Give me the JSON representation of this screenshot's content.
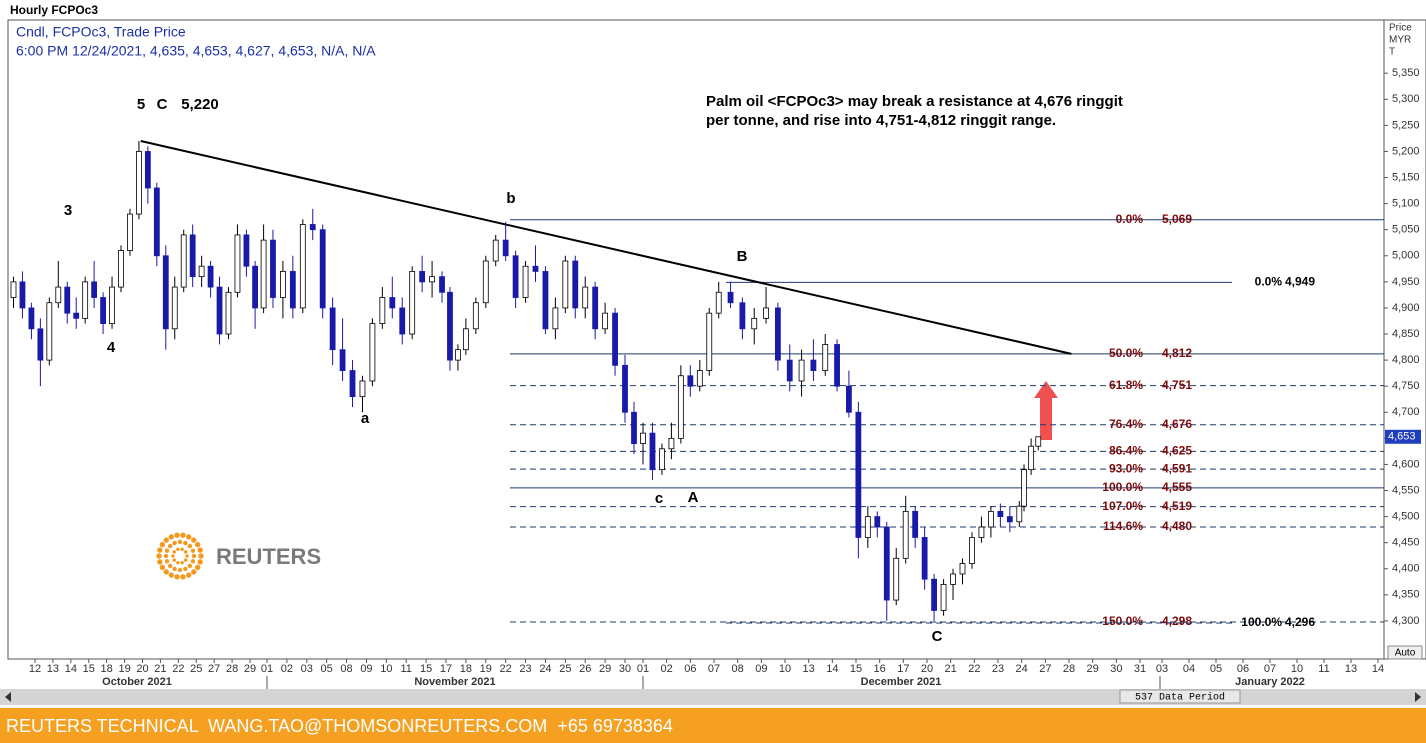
{
  "chart_data": {
    "type": "candlestick",
    "title": "Hourly FCPOc3",
    "legend_lines": [
      "Cndl, FCPOc3, Trade Price",
      "6:00 PM 12/24/2021, 4,635, 4,653, 4,627, 4,653, N/A, N/A"
    ],
    "categories": [
      "12",
      "13",
      "14",
      "15",
      "18",
      "19",
      "20",
      "21",
      "22",
      "25",
      "27",
      "28",
      "29",
      "01",
      "02",
      "03",
      "05",
      "08",
      "09",
      "10",
      "11",
      "15",
      "17",
      "18",
      "19",
      "22",
      "23",
      "24",
      "25",
      "26",
      "29",
      "30",
      "01",
      "02",
      "06",
      "07",
      "08",
      "09",
      "10",
      "13",
      "14",
      "15",
      "16",
      "17",
      "20",
      "21",
      "22",
      "23",
      "24",
      "27",
      "28",
      "29",
      "30",
      "31",
      "03",
      "04",
      "05",
      "06",
      "07",
      "10",
      "11",
      "13",
      "14"
    ],
    "months": [
      "October 2021",
      "November 2021",
      "December 2021",
      "January 2022"
    ],
    "ylim": [
      4227,
      5452
    ],
    "yticks": [
      {
        "value": 4300,
        "label": "4,300"
      },
      {
        "value": 4350,
        "label": "4,350"
      },
      {
        "value": 4400,
        "label": "4,400"
      },
      {
        "value": 4450,
        "label": "4,450"
      },
      {
        "value": 4500,
        "label": "4,500"
      },
      {
        "value": 4550,
        "label": "4,550"
      },
      {
        "value": 4600,
        "label": "4,600"
      },
      {
        "value": 4650,
        "label": "4,650"
      },
      {
        "value": 4700,
        "label": "4,700"
      },
      {
        "value": 4750,
        "label": "4,750"
      },
      {
        "value": 4800,
        "label": "4,800"
      },
      {
        "value": 4850,
        "label": "4,850"
      },
      {
        "value": 4900,
        "label": "4,900"
      },
      {
        "value": 4950,
        "label": "4,950"
      },
      {
        "value": 5000,
        "label": "5,000"
      },
      {
        "value": 5050,
        "label": "5,050"
      },
      {
        "value": 5100,
        "label": "5,100"
      },
      {
        "value": 5150,
        "label": "5,150"
      },
      {
        "value": 5200,
        "label": "5,200"
      },
      {
        "value": 5250,
        "label": "5,250"
      },
      {
        "value": 5300,
        "label": "5,300"
      },
      {
        "value": 5350,
        "label": "5,350"
      }
    ],
    "y_axis_title": [
      "Price",
      "MYR",
      "T"
    ],
    "last_price": {
      "value": 4653,
      "label": "4,653"
    },
    "up_color": "#ffffff",
    "down_color": "#1a1aa8",
    "candles": [
      {
        "x": -1.2,
        "open": 4920,
        "high": 4960,
        "low": 4900,
        "close": 4950
      },
      {
        "x": -0.7,
        "open": 4950,
        "high": 4970,
        "low": 4880,
        "close": 4900
      },
      {
        "x": -0.2,
        "open": 4900,
        "high": 4910,
        "low": 4840,
        "close": 4860
      },
      {
        "x": 0.3,
        "open": 4860,
        "high": 4880,
        "low": 4750,
        "close": 4800
      },
      {
        "x": 0.8,
        "open": 4800,
        "high": 4920,
        "low": 4790,
        "close": 4910
      },
      {
        "x": 1.3,
        "open": 4910,
        "high": 4990,
        "low": 4900,
        "close": 4940
      },
      {
        "x": 1.8,
        "open": 4940,
        "high": 4950,
        "low": 4870,
        "close": 4890
      },
      {
        "x": 2.3,
        "open": 4890,
        "high": 4920,
        "low": 4860,
        "close": 4880
      },
      {
        "x": 2.8,
        "open": 4880,
        "high": 4960,
        "low": 4870,
        "close": 4950
      },
      {
        "x": 3.3,
        "open": 4950,
        "high": 4990,
        "low": 4900,
        "close": 4920
      },
      {
        "x": 3.8,
        "open": 4920,
        "high": 4930,
        "low": 4850,
        "close": 4870
      },
      {
        "x": 4.3,
        "open": 4870,
        "high": 4960,
        "low": 4860,
        "close": 4940
      },
      {
        "x": 4.8,
        "open": 4940,
        "high": 5020,
        "low": 4930,
        "close": 5010
      },
      {
        "x": 5.3,
        "open": 5010,
        "high": 5090,
        "low": 5000,
        "close": 5080
      },
      {
        "x": 5.8,
        "open": 5080,
        "high": 5220,
        "low": 5070,
        "close": 5200
      },
      {
        "x": 6.3,
        "open": 5200,
        "high": 5210,
        "low": 5100,
        "close": 5130
      },
      {
        "x": 6.8,
        "open": 5130,
        "high": 5140,
        "low": 4980,
        "close": 5000
      },
      {
        "x": 7.3,
        "open": 5000,
        "high": 5020,
        "low": 4820,
        "close": 4860
      },
      {
        "x": 7.8,
        "open": 4860,
        "high": 4960,
        "low": 4840,
        "close": 4940
      },
      {
        "x": 8.3,
        "open": 4940,
        "high": 5050,
        "low": 4930,
        "close": 5040
      },
      {
        "x": 8.8,
        "open": 5040,
        "high": 5060,
        "low": 4940,
        "close": 4960
      },
      {
        "x": 9.3,
        "open": 4960,
        "high": 5000,
        "low": 4940,
        "close": 4980
      },
      {
        "x": 9.8,
        "open": 4980,
        "high": 4990,
        "low": 4920,
        "close": 4940
      },
      {
        "x": 10.3,
        "open": 4940,
        "high": 4960,
        "low": 4830,
        "close": 4850
      },
      {
        "x": 10.8,
        "open": 4850,
        "high": 4940,
        "low": 4840,
        "close": 4930
      },
      {
        "x": 11.3,
        "open": 4930,
        "high": 5060,
        "low": 4920,
        "close": 5040
      },
      {
        "x": 11.8,
        "open": 5040,
        "high": 5050,
        "low": 4960,
        "close": 4980
      },
      {
        "x": 12.3,
        "open": 4980,
        "high": 4990,
        "low": 4860,
        "close": 4900
      },
      {
        "x": 12.8,
        "open": 4900,
        "high": 5060,
        "low": 4890,
        "close": 5030
      },
      {
        "x": 13.3,
        "open": 5030,
        "high": 5050,
        "low": 4900,
        "close": 4920
      },
      {
        "x": 13.8,
        "open": 4920,
        "high": 4990,
        "low": 4880,
        "close": 4970
      },
      {
        "x": 14.3,
        "open": 4970,
        "high": 5000,
        "low": 4880,
        "close": 4900
      },
      {
        "x": 14.8,
        "open": 4900,
        "high": 5070,
        "low": 4890,
        "close": 5060
      },
      {
        "x": 15.3,
        "open": 5060,
        "high": 5090,
        "low": 5030,
        "close": 5050
      },
      {
        "x": 15.8,
        "open": 5050,
        "high": 5060,
        "low": 4880,
        "close": 4900
      },
      {
        "x": 16.3,
        "open": 4900,
        "high": 4920,
        "low": 4790,
        "close": 4820
      },
      {
        "x": 16.8,
        "open": 4820,
        "high": 4880,
        "low": 4760,
        "close": 4780
      },
      {
        "x": 17.3,
        "open": 4780,
        "high": 4800,
        "low": 4710,
        "close": 4730
      },
      {
        "x": 17.8,
        "open": 4730,
        "high": 4770,
        "low": 4700,
        "close": 4760
      },
      {
        "x": 18.3,
        "open": 4760,
        "high": 4880,
        "low": 4750,
        "close": 4870
      },
      {
        "x": 18.8,
        "open": 4870,
        "high": 4940,
        "low": 4860,
        "close": 4920
      },
      {
        "x": 19.3,
        "open": 4920,
        "high": 4960,
        "low": 4880,
        "close": 4900
      },
      {
        "x": 19.8,
        "open": 4900,
        "high": 4920,
        "low": 4830,
        "close": 4850
      },
      {
        "x": 20.3,
        "open": 4850,
        "high": 4980,
        "low": 4840,
        "close": 4970
      },
      {
        "x": 20.8,
        "open": 4970,
        "high": 5000,
        "low": 4930,
        "close": 4950
      },
      {
        "x": 21.3,
        "open": 4950,
        "high": 4990,
        "low": 4920,
        "close": 4960
      },
      {
        "x": 21.8,
        "open": 4960,
        "high": 4970,
        "low": 4910,
        "close": 4930
      },
      {
        "x": 22.2,
        "open": 4930,
        "high": 4940,
        "low": 4780,
        "close": 4800
      },
      {
        "x": 22.6,
        "open": 4800,
        "high": 4830,
        "low": 4780,
        "close": 4820
      },
      {
        "x": 23.0,
        "open": 4820,
        "high": 4880,
        "low": 4810,
        "close": 4860
      },
      {
        "x": 23.5,
        "open": 4860,
        "high": 4920,
        "low": 4850,
        "close": 4910
      },
      {
        "x": 24.0,
        "open": 4910,
        "high": 5000,
        "low": 4900,
        "close": 4990
      },
      {
        "x": 24.5,
        "open": 4990,
        "high": 5040,
        "low": 4980,
        "close": 5030
      },
      {
        "x": 25.0,
        "open": 5030,
        "high": 5065,
        "low": 4990,
        "close": 5000
      },
      {
        "x": 25.5,
        "open": 5000,
        "high": 5010,
        "low": 4900,
        "close": 4920
      },
      {
        "x": 26.0,
        "open": 4920,
        "high": 4990,
        "low": 4910,
        "close": 4980
      },
      {
        "x": 26.5,
        "open": 4980,
        "high": 5020,
        "low": 4950,
        "close": 4970
      },
      {
        "x": 27.0,
        "open": 4970,
        "high": 4980,
        "low": 4850,
        "close": 4860
      },
      {
        "x": 27.5,
        "open": 4860,
        "high": 4920,
        "low": 4840,
        "close": 4900
      },
      {
        "x": 28.0,
        "open": 4900,
        "high": 5000,
        "low": 4890,
        "close": 4990
      },
      {
        "x": 28.5,
        "open": 4990,
        "high": 5000,
        "low": 4880,
        "close": 4900
      },
      {
        "x": 29.0,
        "open": 4900,
        "high": 4960,
        "low": 4880,
        "close": 4940
      },
      {
        "x": 29.5,
        "open": 4940,
        "high": 4950,
        "low": 4840,
        "close": 4860
      },
      {
        "x": 30.0,
        "open": 4860,
        "high": 4910,
        "low": 4850,
        "close": 4890
      },
      {
        "x": 30.5,
        "open": 4890,
        "high": 4900,
        "low": 4770,
        "close": 4790
      },
      {
        "x": 31.0,
        "open": 4790,
        "high": 4810,
        "low": 4680,
        "close": 4700
      },
      {
        "x": 31.5,
        "open": 4700,
        "high": 4720,
        "low": 4620,
        "close": 4640
      },
      {
        "x": 32.0,
        "open": 4640,
        "high": 4680,
        "low": 4600,
        "close": 4660
      },
      {
        "x": 32.4,
        "open": 4660,
        "high": 4680,
        "low": 4570,
        "close": 4590
      },
      {
        "x": 32.8,
        "open": 4590,
        "high": 4640,
        "low": 4580,
        "close": 4630
      },
      {
        "x": 33.2,
        "open": 4630,
        "high": 4680,
        "low": 4610,
        "close": 4650
      },
      {
        "x": 33.6,
        "open": 4650,
        "high": 4790,
        "low": 4640,
        "close": 4770
      },
      {
        "x": 34.0,
        "open": 4770,
        "high": 4790,
        "low": 4730,
        "close": 4750
      },
      {
        "x": 34.4,
        "open": 4750,
        "high": 4800,
        "low": 4740,
        "close": 4780
      },
      {
        "x": 34.8,
        "open": 4780,
        "high": 4900,
        "low": 4770,
        "close": 4890
      },
      {
        "x": 35.2,
        "open": 4890,
        "high": 4950,
        "low": 4880,
        "close": 4930
      },
      {
        "x": 35.7,
        "open": 4930,
        "high": 4950,
        "low": 4900,
        "close": 4910
      },
      {
        "x": 36.2,
        "open": 4910,
        "high": 4920,
        "low": 4840,
        "close": 4860
      },
      {
        "x": 36.7,
        "open": 4860,
        "high": 4900,
        "low": 4830,
        "close": 4880
      },
      {
        "x": 37.2,
        "open": 4880,
        "high": 4940,
        "low": 4870,
        "close": 4900
      },
      {
        "x": 37.7,
        "open": 4900,
        "high": 4910,
        "low": 4780,
        "close": 4800
      },
      {
        "x": 38.2,
        "open": 4800,
        "high": 4830,
        "low": 4740,
        "close": 4760
      },
      {
        "x": 38.7,
        "open": 4760,
        "high": 4820,
        "low": 4730,
        "close": 4800
      },
      {
        "x": 39.2,
        "open": 4800,
        "high": 4840,
        "low": 4760,
        "close": 4780
      },
      {
        "x": 39.7,
        "open": 4780,
        "high": 4850,
        "low": 4770,
        "close": 4830
      },
      {
        "x": 40.2,
        "open": 4830,
        "high": 4840,
        "low": 4740,
        "close": 4750
      },
      {
        "x": 40.7,
        "open": 4750,
        "high": 4780,
        "low": 4690,
        "close": 4700
      },
      {
        "x": 41.1,
        "open": 4700,
        "high": 4720,
        "low": 4420,
        "close": 4460
      },
      {
        "x": 41.5,
        "open": 4460,
        "high": 4520,
        "low": 4440,
        "close": 4500
      },
      {
        "x": 41.9,
        "open": 4500,
        "high": 4510,
        "low": 4460,
        "close": 4480
      },
      {
        "x": 42.3,
        "open": 4480,
        "high": 4490,
        "low": 4300,
        "close": 4340
      },
      {
        "x": 42.7,
        "open": 4340,
        "high": 4440,
        "low": 4330,
        "close": 4420
      },
      {
        "x": 43.1,
        "open": 4420,
        "high": 4540,
        "low": 4410,
        "close": 4510
      },
      {
        "x": 43.5,
        "open": 4510,
        "high": 4520,
        "low": 4440,
        "close": 4460
      },
      {
        "x": 43.9,
        "open": 4460,
        "high": 4480,
        "low": 4360,
        "close": 4380
      },
      {
        "x": 44.3,
        "open": 4380,
        "high": 4390,
        "low": 4300,
        "close": 4320
      },
      {
        "x": 44.7,
        "open": 4320,
        "high": 4380,
        "low": 4310,
        "close": 4370
      },
      {
        "x": 45.1,
        "open": 4370,
        "high": 4400,
        "low": 4340,
        "close": 4390
      },
      {
        "x": 45.5,
        "open": 4390,
        "high": 4420,
        "low": 4370,
        "close": 4410
      },
      {
        "x": 45.9,
        "open": 4410,
        "high": 4470,
        "low": 4400,
        "close": 4460
      },
      {
        "x": 46.3,
        "open": 4460,
        "high": 4500,
        "low": 4450,
        "close": 4480
      },
      {
        "x": 46.7,
        "open": 4480,
        "high": 4520,
        "low": 4460,
        "close": 4510
      },
      {
        "x": 47.1,
        "open": 4510,
        "high": 4525,
        "low": 4480,
        "close": 4500
      },
      {
        "x": 47.5,
        "open": 4500,
        "high": 4520,
        "low": 4470,
        "close": 4490
      },
      {
        "x": 47.9,
        "open": 4490,
        "high": 4530,
        "low": 4480,
        "close": 4520
      },
      {
        "x": 48.1,
        "open": 4520,
        "high": 4600,
        "low": 4510,
        "close": 4590
      },
      {
        "x": 48.4,
        "open": 4590,
        "high": 4650,
        "low": 4580,
        "close": 4635
      },
      {
        "x": 48.7,
        "open": 4635,
        "high": 4653,
        "low": 4627,
        "close": 4653
      }
    ],
    "trendline": {
      "x": [
        5.9,
        50.1
      ],
      "y": [
        5220,
        4812
      ]
    },
    "annotations": [
      "5",
      "C",
      "5,220",
      "3",
      "4",
      "a",
      "b",
      "B",
      "c",
      "A",
      "C"
    ],
    "comment": [
      "Palm oil <FCPOc3> may break a resistance at 4,676 ringgit",
      "per tonne, and rise into 4,751-4,812 ringgit range."
    ],
    "fib_levels": [
      {
        "pct": {
          "value": 0,
          "label": "0.0%"
        },
        "price": {
          "value": 5069,
          "label": "5,069"
        },
        "dashed": false
      },
      {
        "pct": {
          "value": 50,
          "label": "50.0%"
        },
        "price": {
          "value": 4812,
          "label": "4,812"
        },
        "dashed": false
      },
      {
        "pct": {
          "value": 61.8,
          "label": "61.8%"
        },
        "price": {
          "value": 4751,
          "label": "4,751"
        },
        "dashed": true
      },
      {
        "pct": {
          "value": 76.4,
          "label": "76.4%"
        },
        "price": {
          "value": 4676,
          "label": "4,676"
        },
        "dashed": true
      },
      {
        "pct": {
          "value": 86.4,
          "label": "86.4%"
        },
        "price": {
          "value": 4625,
          "label": "4,625"
        },
        "dashed": true
      },
      {
        "pct": {
          "value": 93,
          "label": "93.0%"
        },
        "price": {
          "value": 4591,
          "label": "4,591"
        },
        "dashed": true
      },
      {
        "pct": {
          "value": 100,
          "label": "100.0%"
        },
        "price": {
          "value": 4555,
          "label": "4,555"
        },
        "dashed": false
      },
      {
        "pct": {
          "value": 107,
          "label": "107.0%"
        },
        "price": {
          "value": 4519,
          "label": "4,519"
        },
        "dashed": true
      },
      {
        "pct": {
          "value": 114.6,
          "label": "114.6%"
        },
        "price": {
          "value": 4480,
          "label": "4,480"
        },
        "dashed": true
      },
      {
        "pct": {
          "value": 150,
          "label": "150.0%"
        },
        "price": {
          "value": 4298,
          "label": "4,298"
        },
        "dashed": true
      }
    ],
    "fib_levels_2": [
      {
        "pct": {
          "value": 0,
          "label": "0.0%"
        },
        "price": {
          "value": 4949,
          "label": "4,949"
        },
        "dashed": false
      },
      {
        "pct": {
          "value": 100,
          "label": "100.0%"
        },
        "price": {
          "value": 4296,
          "label": "4,296"
        },
        "dashed": true
      }
    ],
    "data_period": "537 Data Period",
    "auto_button": "Auto"
  },
  "logo": "REUTERS",
  "footer": "REUTERS TECHNICAL  WANG.TAO@THOMSONREUTERS.COM  +65 69738364"
}
